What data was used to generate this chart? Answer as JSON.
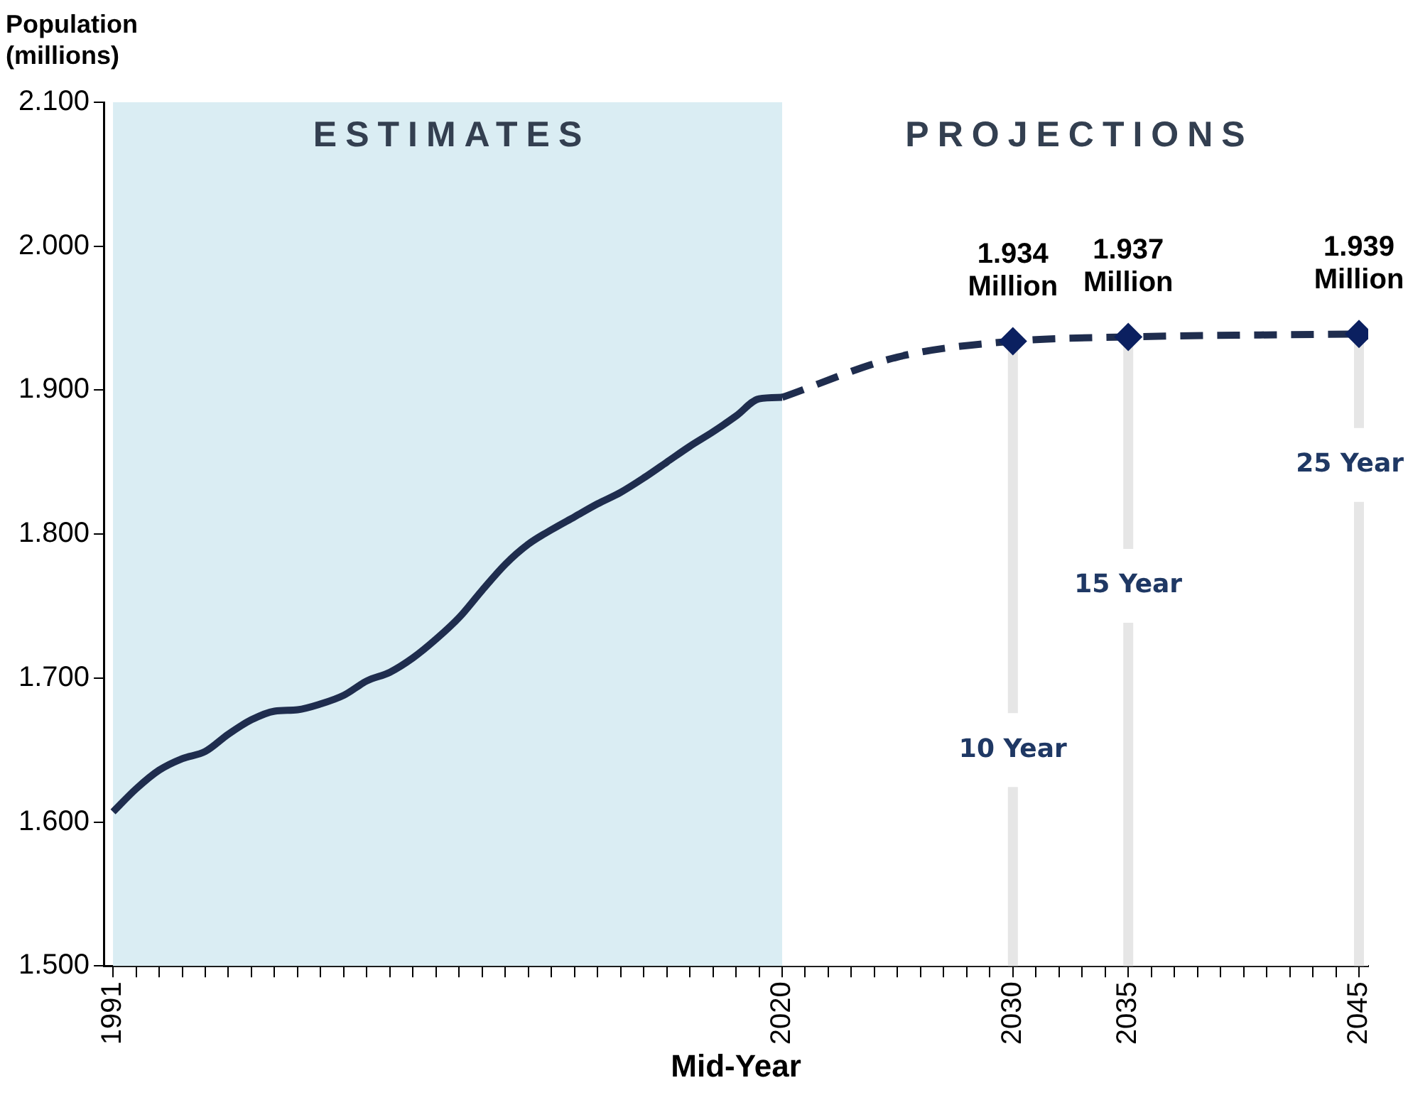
{
  "chart_data": {
    "type": "line",
    "xlabel": "Mid-Year",
    "ylabel": "Population (millions)",
    "xlim": [
      1990.6,
      2045.4
    ],
    "ylim": [
      1.5,
      2.1
    ],
    "yticks": [
      {
        "value": 1.5,
        "label": "1.500"
      },
      {
        "value": 1.6,
        "label": "1.600"
      },
      {
        "value": 1.7,
        "label": "1.700"
      },
      {
        "value": 1.8,
        "label": "1.800"
      },
      {
        "value": 1.9,
        "label": "1.900"
      },
      {
        "value": 2.0,
        "label": "2.000"
      },
      {
        "value": 2.1,
        "label": "2.100"
      }
    ],
    "xticks": [
      1991,
      {
        "value": 1992,
        "label": null
      },
      {
        "value": 1993,
        "label": null
      },
      {
        "value": 1994,
        "label": null
      },
      {
        "value": 1995,
        "label": null
      },
      {
        "value": 1996,
        "label": null
      },
      {
        "value": 1997,
        "label": null
      },
      {
        "value": 1998,
        "label": null
      },
      {
        "value": 1999,
        "label": null
      },
      {
        "value": 2000,
        "label": null
      },
      {
        "value": 2001,
        "label": null
      },
      {
        "value": 2002,
        "label": null
      },
      {
        "value": 2003,
        "label": null
      },
      {
        "value": 2004,
        "label": null
      },
      {
        "value": 2005,
        "label": null
      },
      {
        "value": 2006,
        "label": null
      },
      {
        "value": 2007,
        "label": null
      },
      {
        "value": 2008,
        "label": null
      },
      {
        "value": 2009,
        "label": null
      },
      {
        "value": 2010,
        "label": null
      },
      {
        "value": 2011,
        "label": null
      },
      {
        "value": 2012,
        "label": null
      },
      {
        "value": 2013,
        "label": null
      },
      {
        "value": 2014,
        "label": null
      },
      {
        "value": 2015,
        "label": null
      },
      {
        "value": 2016,
        "label": null
      },
      {
        "value": 2017,
        "label": null
      },
      {
        "value": 2018,
        "label": null
      },
      {
        "value": 2019,
        "label": null
      },
      2020,
      {
        "value": 2021,
        "label": null
      },
      {
        "value": 2022,
        "label": null
      },
      {
        "value": 2023,
        "label": null
      },
      {
        "value": 2024,
        "label": null
      },
      {
        "value": 2025,
        "label": null
      },
      {
        "value": 2026,
        "label": null
      },
      {
        "value": 2027,
        "label": null
      },
      {
        "value": 2028,
        "label": null
      },
      {
        "value": 2029,
        "label": null
      },
      2030,
      {
        "value": 2031,
        "label": null
      },
      {
        "value": 2032,
        "label": null
      },
      {
        "value": 2033,
        "label": null
      },
      {
        "value": 2034,
        "label": null
      },
      2035,
      {
        "value": 2036,
        "label": null
      },
      {
        "value": 2037,
        "label": null
      },
      {
        "value": 2038,
        "label": null
      },
      {
        "value": 2039,
        "label": null
      },
      {
        "value": 2040,
        "label": null
      },
      {
        "value": 2041,
        "label": null
      },
      {
        "value": 2042,
        "label": null
      },
      {
        "value": 2043,
        "label": null
      },
      {
        "value": 2044,
        "label": null
      },
      2045
    ],
    "series": [
      {
        "color": "#1f2d4e",
        "line_style": "solid",
        "marker": "none",
        "x": [
          1991,
          1992,
          1993,
          1994,
          1995,
          1996,
          1997,
          1998,
          1999,
          2000,
          2001,
          2002,
          2003,
          2004,
          2005,
          2006,
          2007,
          2008,
          2009,
          2010,
          2011,
          2012,
          2013,
          2014,
          2015,
          2016,
          2017,
          2018,
          2019,
          2020
        ],
        "values": [
          1.607,
          1.623,
          1.636,
          1.644,
          1.649,
          1.661,
          1.671,
          1.677,
          1.678,
          1.682,
          1.688,
          1.698,
          1.704,
          1.714,
          1.727,
          1.742,
          1.761,
          1.779,
          1.793,
          1.803,
          1.812,
          1.821,
          1.829,
          1.839,
          1.85,
          1.861,
          1.871,
          1.882,
          1.894,
          1.895
        ]
      },
      {
        "color": "#1f2d4e",
        "line_style": "dashed",
        "marker": "diamond",
        "x": [
          2020,
          2025,
          2030,
          2035,
          2045
        ],
        "values": [
          1.895,
          1.923,
          1.934,
          1.937,
          1.939
        ],
        "value_labels": [
          null,
          null,
          "1.934 Million",
          "1.937 Million",
          "1.939 Million"
        ]
      }
    ],
    "bands": [
      {
        "axis": "x",
        "from": 1991,
        "to": 2020,
        "label": "ESTIMATES",
        "color": "#daedf3"
      },
      {
        "axis": "x",
        "from": 2020,
        "to": 2045.4,
        "label": "PROJECTIONS",
        "color": "#ffffff"
      }
    ],
    "ref_lines": [
      {
        "axis": "x",
        "value": 2030,
        "label": "10 Year",
        "color": "#e6e6e6"
      },
      {
        "axis": "x",
        "value": 2035,
        "label": "15 Year",
        "color": "#e6e6e6"
      },
      {
        "axis": "x",
        "value": 2045,
        "label": "25 Year",
        "color": "#e6e6e6"
      }
    ]
  }
}
